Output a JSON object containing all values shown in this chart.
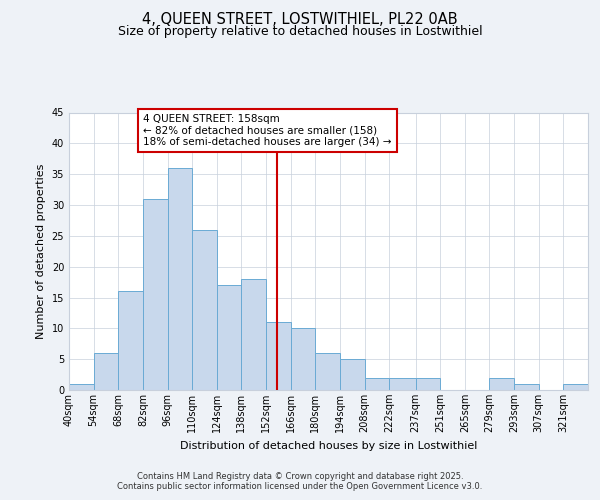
{
  "title": "4, QUEEN STREET, LOSTWITHIEL, PL22 0AB",
  "subtitle": "Size of property relative to detached houses in Lostwithiel",
  "xlabel": "Distribution of detached houses by size in Lostwithiel",
  "ylabel": "Number of detached properties",
  "bin_labels": [
    "40sqm",
    "54sqm",
    "68sqm",
    "82sqm",
    "96sqm",
    "110sqm",
    "124sqm",
    "138sqm",
    "152sqm",
    "166sqm",
    "180sqm",
    "194sqm",
    "208sqm",
    "222sqm",
    "237sqm",
    "251sqm",
    "265sqm",
    "279sqm",
    "293sqm",
    "307sqm",
    "321sqm"
  ],
  "bin_edges": [
    40,
    54,
    68,
    82,
    96,
    110,
    124,
    138,
    152,
    166,
    180,
    194,
    208,
    222,
    237,
    251,
    265,
    279,
    293,
    307,
    321,
    335
  ],
  "counts": [
    1,
    6,
    16,
    31,
    36,
    26,
    17,
    18,
    11,
    10,
    6,
    5,
    2,
    2,
    2,
    0,
    0,
    2,
    1,
    0,
    1
  ],
  "bar_color": "#c8d8ec",
  "bar_edge_color": "#6aaad4",
  "vline_x": 158,
  "vline_color": "#cc0000",
  "annotation_title": "4 QUEEN STREET: 158sqm",
  "annotation_line1": "← 82% of detached houses are smaller (158)",
  "annotation_line2": "18% of semi-detached houses are larger (34) →",
  "annotation_box_color": "#cc0000",
  "ylim": [
    0,
    45
  ],
  "yticks": [
    0,
    5,
    10,
    15,
    20,
    25,
    30,
    35,
    40,
    45
  ],
  "bg_color": "#eef2f7",
  "plot_bg_color": "#ffffff",
  "grid_color": "#c8d0dc",
  "footer1": "Contains HM Land Registry data © Crown copyright and database right 2025.",
  "footer2": "Contains public sector information licensed under the Open Government Licence v3.0.",
  "title_fontsize": 10.5,
  "subtitle_fontsize": 9,
  "axis_label_fontsize": 8,
  "tick_fontsize": 7,
  "annotation_fontsize": 7.5,
  "footer_fontsize": 6
}
